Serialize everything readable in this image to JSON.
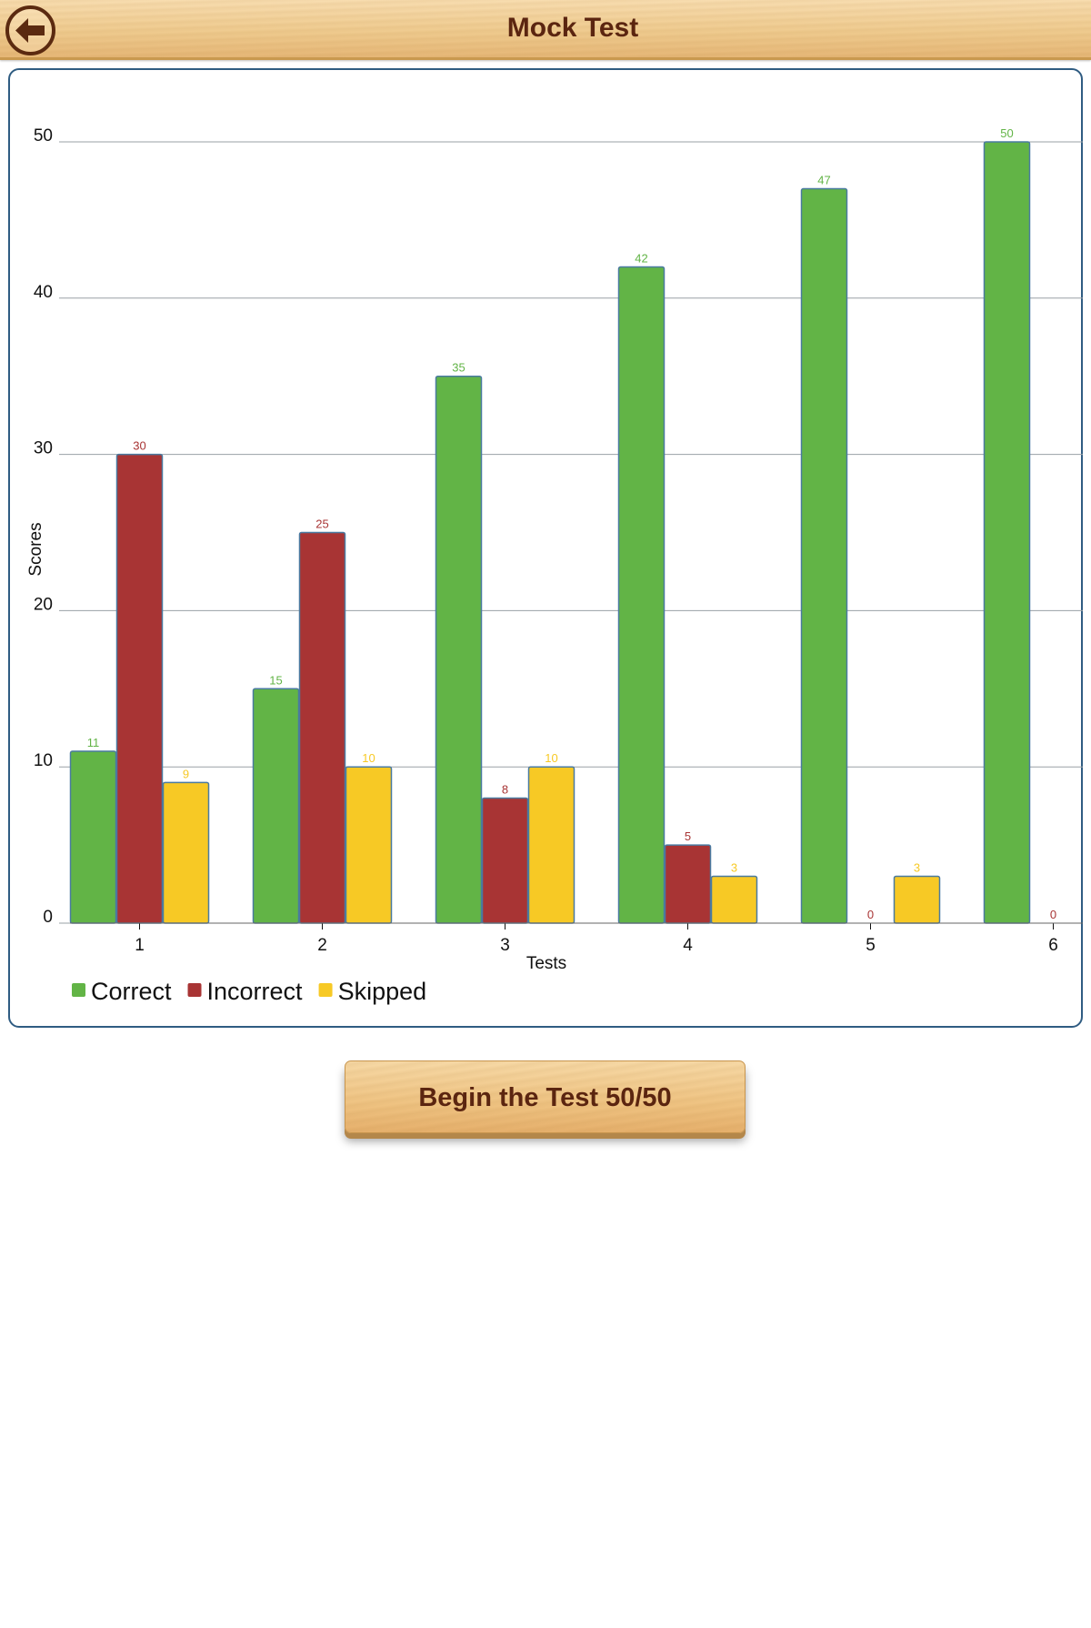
{
  "header": {
    "title": "Mock Test",
    "back_icon": "arrow-left-icon"
  },
  "colors": {
    "correct": "#62b446",
    "incorrect": "#a83434",
    "skipped": "#f7c925",
    "bar_stroke": "#4a7aa0",
    "gridline": "#9aa0a6",
    "text_brown": "#5b2510"
  },
  "chart_data": {
    "type": "bar",
    "categories": [
      "1",
      "2",
      "3",
      "4",
      "5",
      "6"
    ],
    "series": [
      {
        "name": "Correct",
        "color": "#62b446",
        "values": [
          11,
          15,
          35,
          42,
          47,
          50
        ]
      },
      {
        "name": "Incorrect",
        "color": "#a83434",
        "values": [
          30,
          25,
          8,
          5,
          0,
          0
        ]
      },
      {
        "name": "Skipped",
        "color": "#f7c925",
        "values": [
          9,
          10,
          10,
          3,
          3,
          null
        ]
      }
    ],
    "xlabel": "Tests",
    "ylabel": "Scores",
    "ylim": [
      0,
      50
    ],
    "yticks": [
      0,
      10,
      20,
      30,
      40,
      50
    ],
    "grid": true,
    "legend": "bottom-left"
  },
  "actions": {
    "begin_label": "Begin the Test 50/50"
  }
}
